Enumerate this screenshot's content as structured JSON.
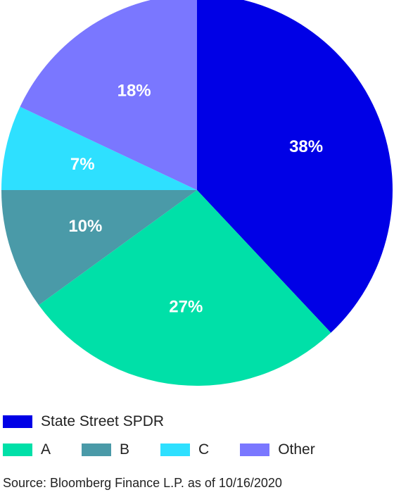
{
  "chart_data": {
    "type": "pie",
    "title": "",
    "slices": [
      {
        "name": "State Street SPDR",
        "value": 38,
        "label": "38%",
        "color": "#0000e6"
      },
      {
        "name": "A",
        "value": 27,
        "label": "27%",
        "color": "#00e0a8"
      },
      {
        "name": "B",
        "value": 10,
        "label": "10%",
        "color": "#4a9aa8"
      },
      {
        "name": "C",
        "value": 7,
        "label": "7%",
        "color": "#2ee0ff"
      },
      {
        "name": "Other",
        "value": 18,
        "label": "18%",
        "color": "#7a77ff"
      }
    ],
    "legend_position": "bottom",
    "start_angle_deg": 0,
    "direction": "clockwise"
  },
  "legend": {
    "rows": [
      [
        0
      ],
      [
        1,
        2,
        3,
        4
      ]
    ]
  },
  "source": "Source: Bloomberg Finance L.P. as of 10/16/2020"
}
